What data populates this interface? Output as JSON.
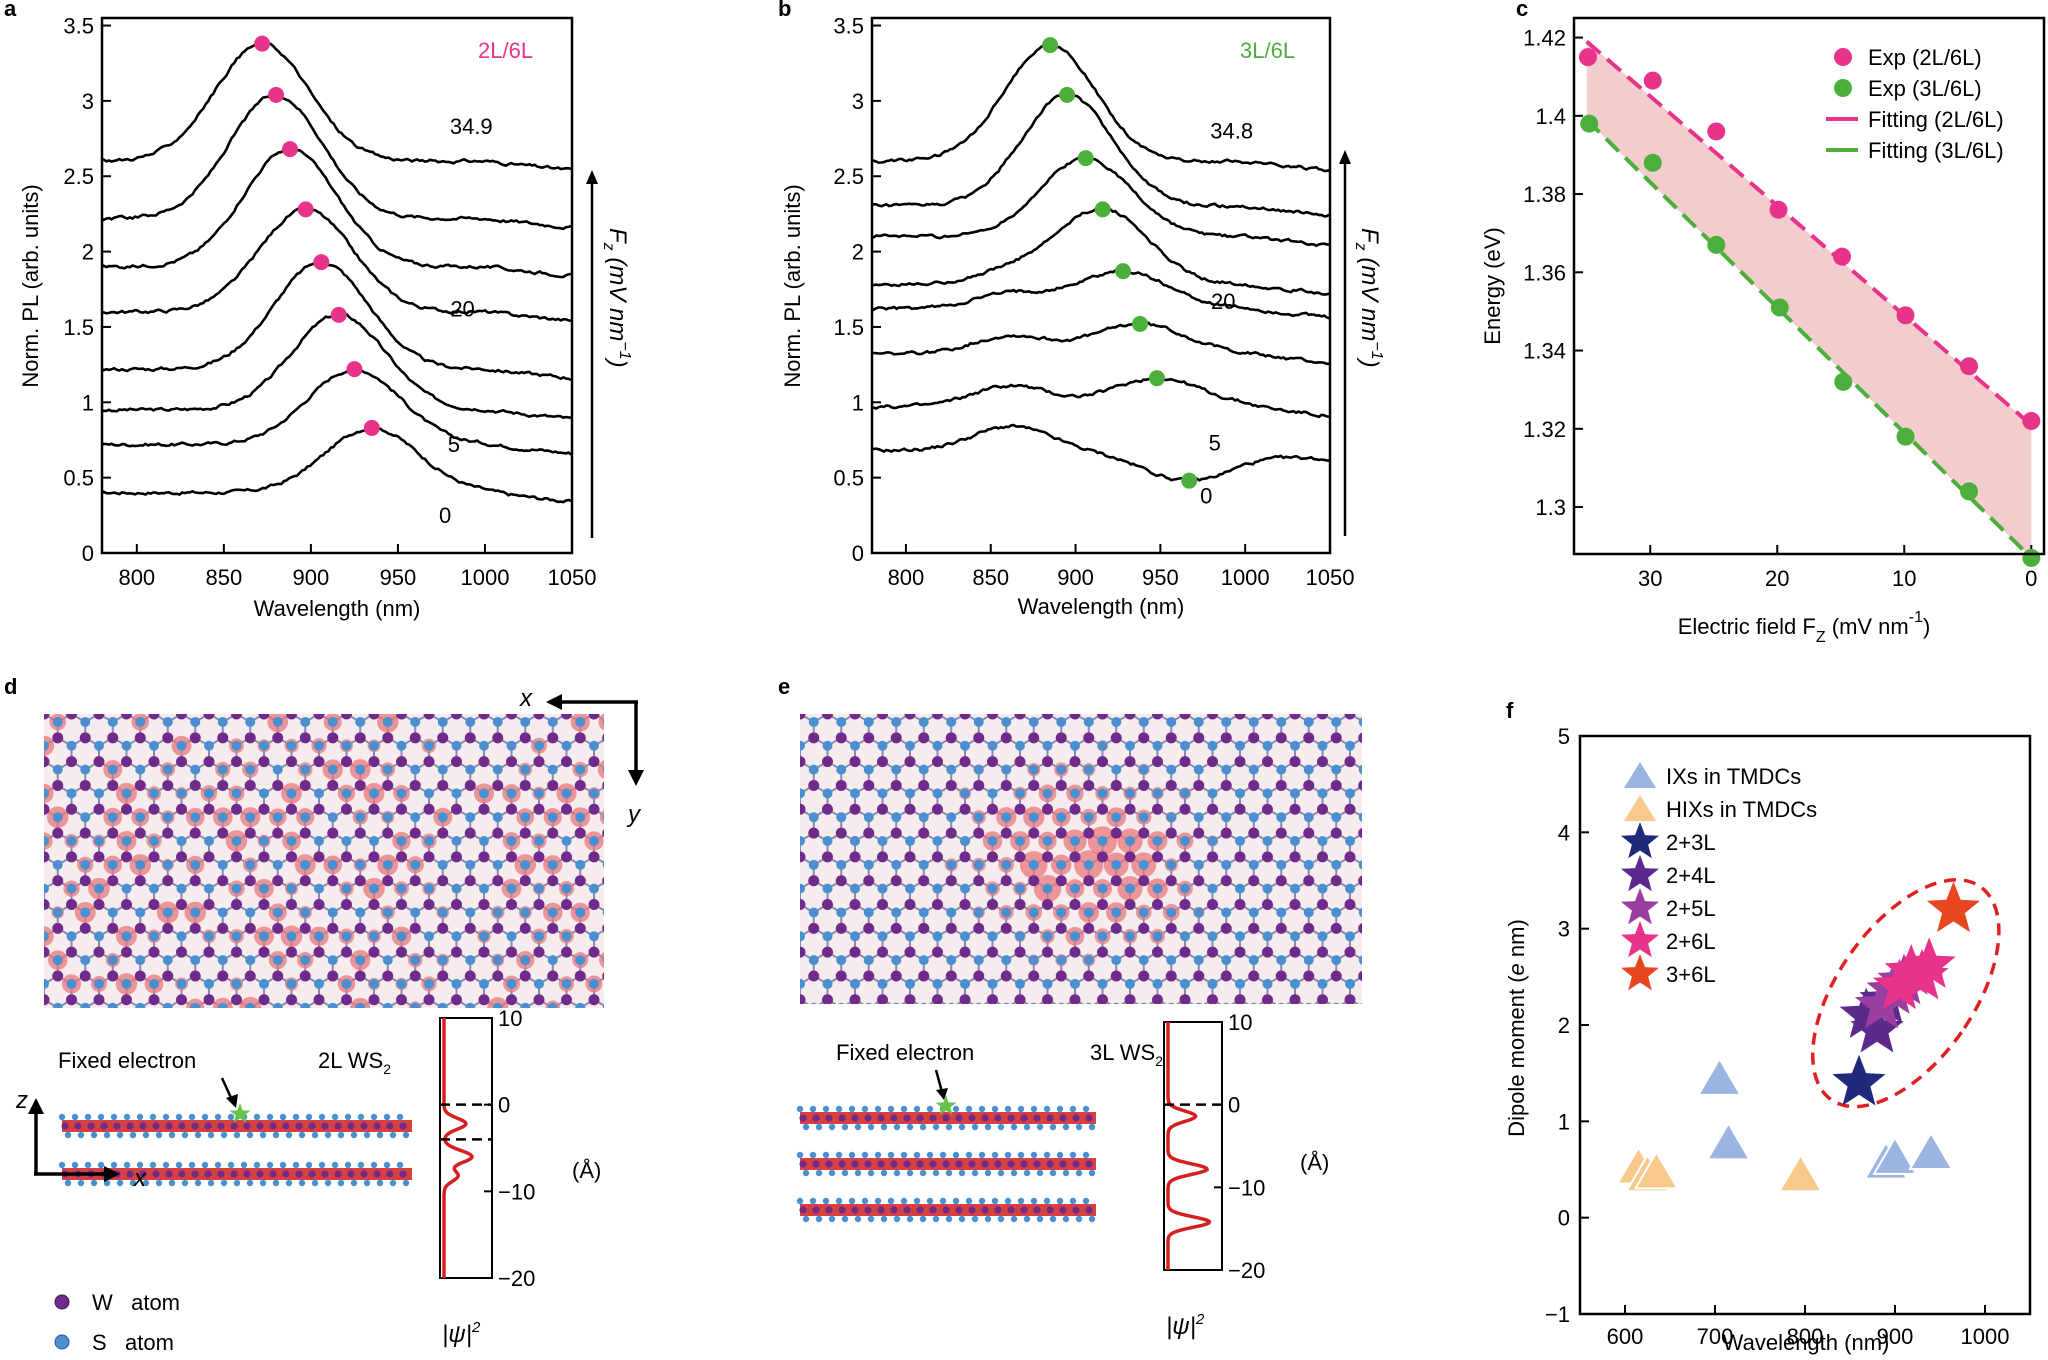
{
  "chart_data": [
    {
      "type": "line",
      "panel": "a",
      "label": "2L/6L",
      "xlabel": "Wavelength (nm)",
      "ylabel": "Norm. PL (arb. units)",
      "xlim": [
        780,
        1050
      ],
      "ylim": [
        0,
        3.55
      ],
      "xticks": [
        "800",
        "850",
        "900",
        "950",
        "1000",
        "1050"
      ],
      "yticks": [
        "0",
        "0.5",
        "1",
        "1.5",
        "2",
        "2.5",
        "3",
        "3.5"
      ],
      "field_axis_label": "Fz (mV nm-1)",
      "field_labels": [
        {
          "text": "34.9",
          "x": 995,
          "y": 2.78
        },
        {
          "text": "20",
          "x": 990,
          "y": 1.57
        },
        {
          "text": "5",
          "x": 985,
          "y": 0.67
        },
        {
          "text": "0",
          "x": 980,
          "y": 0.2
        }
      ],
      "peak_color": "#e8338a",
      "series": [
        {
          "field": "0",
          "base": 0.4,
          "peak_x": 935,
          "peak_y": 0.83
        },
        {
          "field": "5",
          "base": 0.72,
          "peak_x": 925,
          "peak_y": 1.22
        },
        {
          "field": "10",
          "base": 0.95,
          "peak_x": 916,
          "peak_y": 1.58
        },
        {
          "field": "15",
          "base": 1.22,
          "peak_x": 906,
          "peak_y": 1.93
        },
        {
          "field": "20",
          "base": 1.6,
          "peak_x": 897,
          "peak_y": 2.28
        },
        {
          "field": "25",
          "base": 1.9,
          "peak_x": 888,
          "peak_y": 2.68
        },
        {
          "field": "30",
          "base": 2.22,
          "peak_x": 880,
          "peak_y": 3.04
        },
        {
          "field": "34.9",
          "base": 2.6,
          "peak_x": 872,
          "peak_y": 3.38
        }
      ]
    },
    {
      "type": "line",
      "panel": "b",
      "label": "3L/6L",
      "xlabel": "Wavelength (nm)",
      "ylabel": "Norm. PL (arb. units)",
      "xlim": [
        780,
        1050
      ],
      "ylim": [
        0,
        3.55
      ],
      "xticks": [
        "800",
        "850",
        "900",
        "950",
        "1000",
        "1050"
      ],
      "yticks": [
        "0",
        "0.5",
        "1",
        "1.5",
        "2",
        "2.5",
        "3",
        "3.5"
      ],
      "field_axis_label": "Fz (mV nm-1)",
      "field_labels": [
        {
          "text": "34.8",
          "x": 995,
          "y": 2.75
        },
        {
          "text": "20",
          "x": 990,
          "y": 1.62
        },
        {
          "text": "5",
          "x": 985,
          "y": 0.68
        },
        {
          "text": "0",
          "x": 980,
          "y": 0.33
        }
      ],
      "peak_color": "#4caf3c",
      "series": [
        {
          "field": "0",
          "base": 0.68,
          "peak_x": 967,
          "peak_y": 0.48
        },
        {
          "field": "5",
          "base": 0.97,
          "peak_x": 948,
          "peak_y": 1.16
        },
        {
          "field": "10",
          "base": 1.32,
          "peak_x": 938,
          "peak_y": 1.52
        },
        {
          "field": "15",
          "base": 1.62,
          "peak_x": 928,
          "peak_y": 1.87
        },
        {
          "field": "20",
          "base": 1.78,
          "peak_x": 916,
          "peak_y": 2.28
        },
        {
          "field": "25",
          "base": 2.1,
          "peak_x": 906,
          "peak_y": 2.62
        },
        {
          "field": "30",
          "base": 2.3,
          "peak_x": 895,
          "peak_y": 3.04
        },
        {
          "field": "34.8",
          "base": 2.6,
          "peak_x": 885,
          "peak_y": 3.37
        }
      ]
    },
    {
      "type": "scatter",
      "panel": "c",
      "xlabel": "Electric field F",
      "xlabel_sub": "Z",
      "xlabel_unit": " (mV nm",
      "xlabel_sup": "-1",
      "xlabel_end": ")",
      "ylabel": "Energy (eV)",
      "xlim": [
        36,
        -1
      ],
      "ylim": [
        1.288,
        1.425
      ],
      "xticks": [
        "30",
        "20",
        "10",
        "0"
      ],
      "yticks": [
        "1.3",
        "1.32",
        "1.34",
        "1.36",
        "1.38",
        "1.4",
        "1.42"
      ],
      "legend": [
        "Exp (2L/6L)",
        "Exp (3L/6L)",
        "Fitting (2L/6L)",
        "Fitting (3L/6L)"
      ],
      "series": [
        {
          "name": "Exp (2L/6L)",
          "color": "#e8338a",
          "x": [
            34.9,
            29.8,
            24.8,
            19.9,
            14.9,
            9.9,
            4.9,
            0
          ],
          "y": [
            1.415,
            1.409,
            1.396,
            1.376,
            1.364,
            1.349,
            1.336,
            1.322
          ]
        },
        {
          "name": "Exp (3L/6L)",
          "color": "#4caf3c",
          "x": [
            34.8,
            29.8,
            24.8,
            19.8,
            14.8,
            9.9,
            4.9,
            0
          ],
          "y": [
            1.398,
            1.388,
            1.367,
            1.351,
            1.332,
            1.318,
            1.304,
            1.287
          ]
        }
      ],
      "fits": [
        {
          "name": "Fitting (2L/6L)",
          "color": "#e8338a",
          "x": [
            35,
            0
          ],
          "y": [
            1.419,
            1.321
          ]
        },
        {
          "name": "Fitting (3L/6L)",
          "color": "#4caf3c",
          "x": [
            35,
            0
          ],
          "y": [
            1.399,
            1.287
          ]
        }
      ]
    },
    {
      "type": "scatter",
      "panel": "f",
      "xlabel": "Wavelength (nm)",
      "ylabel": "Dipole moment (e nm)",
      "xlim": [
        550,
        1050
      ],
      "ylim": [
        -1,
        5
      ],
      "xticks": [
        "600",
        "700",
        "800",
        "900",
        "1000"
      ],
      "yticks": [
        "-1",
        "0",
        "1",
        "2",
        "3",
        "4",
        "5"
      ],
      "legend": [
        "IXs in TMDCs",
        "HIXs in TMDCs",
        "2+3L",
        "2+4L",
        "2+5L",
        "2+6L",
        "3+6L"
      ],
      "series": [
        {
          "name": "IXs in TMDCs",
          "marker": "triangle",
          "color": "#9bb4e0",
          "x": [
            705,
            715,
            890,
            900,
            940
          ],
          "y": [
            1.42,
            0.75,
            0.55,
            0.6,
            0.65
          ]
        },
        {
          "name": "HIXs in TMDCs",
          "marker": "triangle",
          "color": "#f7c98a",
          "x": [
            615,
            625,
            635,
            795
          ],
          "y": [
            0.5,
            0.42,
            0.45,
            0.42
          ]
        },
        {
          "name": "2+3L",
          "marker": "star",
          "color": "#1f2a7a",
          "x": [
            860
          ],
          "y": [
            1.4
          ]
        },
        {
          "name": "2+4L",
          "marker": "star",
          "color": "#5b2a8c",
          "x": [
            868,
            880,
            890
          ],
          "y": [
            2.1,
            1.95,
            2.25
          ]
        },
        {
          "name": "2+5L",
          "marker": "star",
          "color": "#9a3fa0",
          "x": [
            885,
            898,
            910
          ],
          "y": [
            2.2,
            2.35,
            2.45
          ]
        },
        {
          "name": "2+6L",
          "marker": "star",
          "color": "#e8338a",
          "x": [
            905,
            918,
            930,
            938
          ],
          "y": [
            2.4,
            2.55,
            2.5,
            2.62
          ]
        },
        {
          "name": "3+6L",
          "marker": "star",
          "color": "#e8461e",
          "x": [
            965
          ],
          "y": [
            3.2
          ]
        }
      ]
    }
  ],
  "panel_letters": {
    "a": "a",
    "b": "b",
    "c": "c",
    "d": "d",
    "e": "e",
    "f": "f"
  },
  "panel_d": {
    "axis_x": "x",
    "axis_y": "y",
    "axis_z": "z",
    "axis_x2": "x",
    "fixed_electron": "Fixed electron",
    "material": "2L WS",
    "material_sub": "2",
    "profile_ticks": [
      "10",
      "0",
      "-10",
      "-20"
    ],
    "profile_unit": "(Å)",
    "psi_label": "|ψ|",
    "psi_sup": "2",
    "legend_w": "W   atom",
    "legend_s": "S   atom",
    "w_color": "#6f2a8a",
    "s_color": "#4a90d0",
    "density_color": "#e8777a"
  },
  "panel_e": {
    "fixed_electron": "Fixed electron",
    "material": "3L WS",
    "material_sub": "2",
    "profile_ticks": [
      "10",
      "0",
      "-10",
      "-20"
    ],
    "profile_unit": "(Å)",
    "psi_label": "|ψ|",
    "psi_sup": "2"
  }
}
